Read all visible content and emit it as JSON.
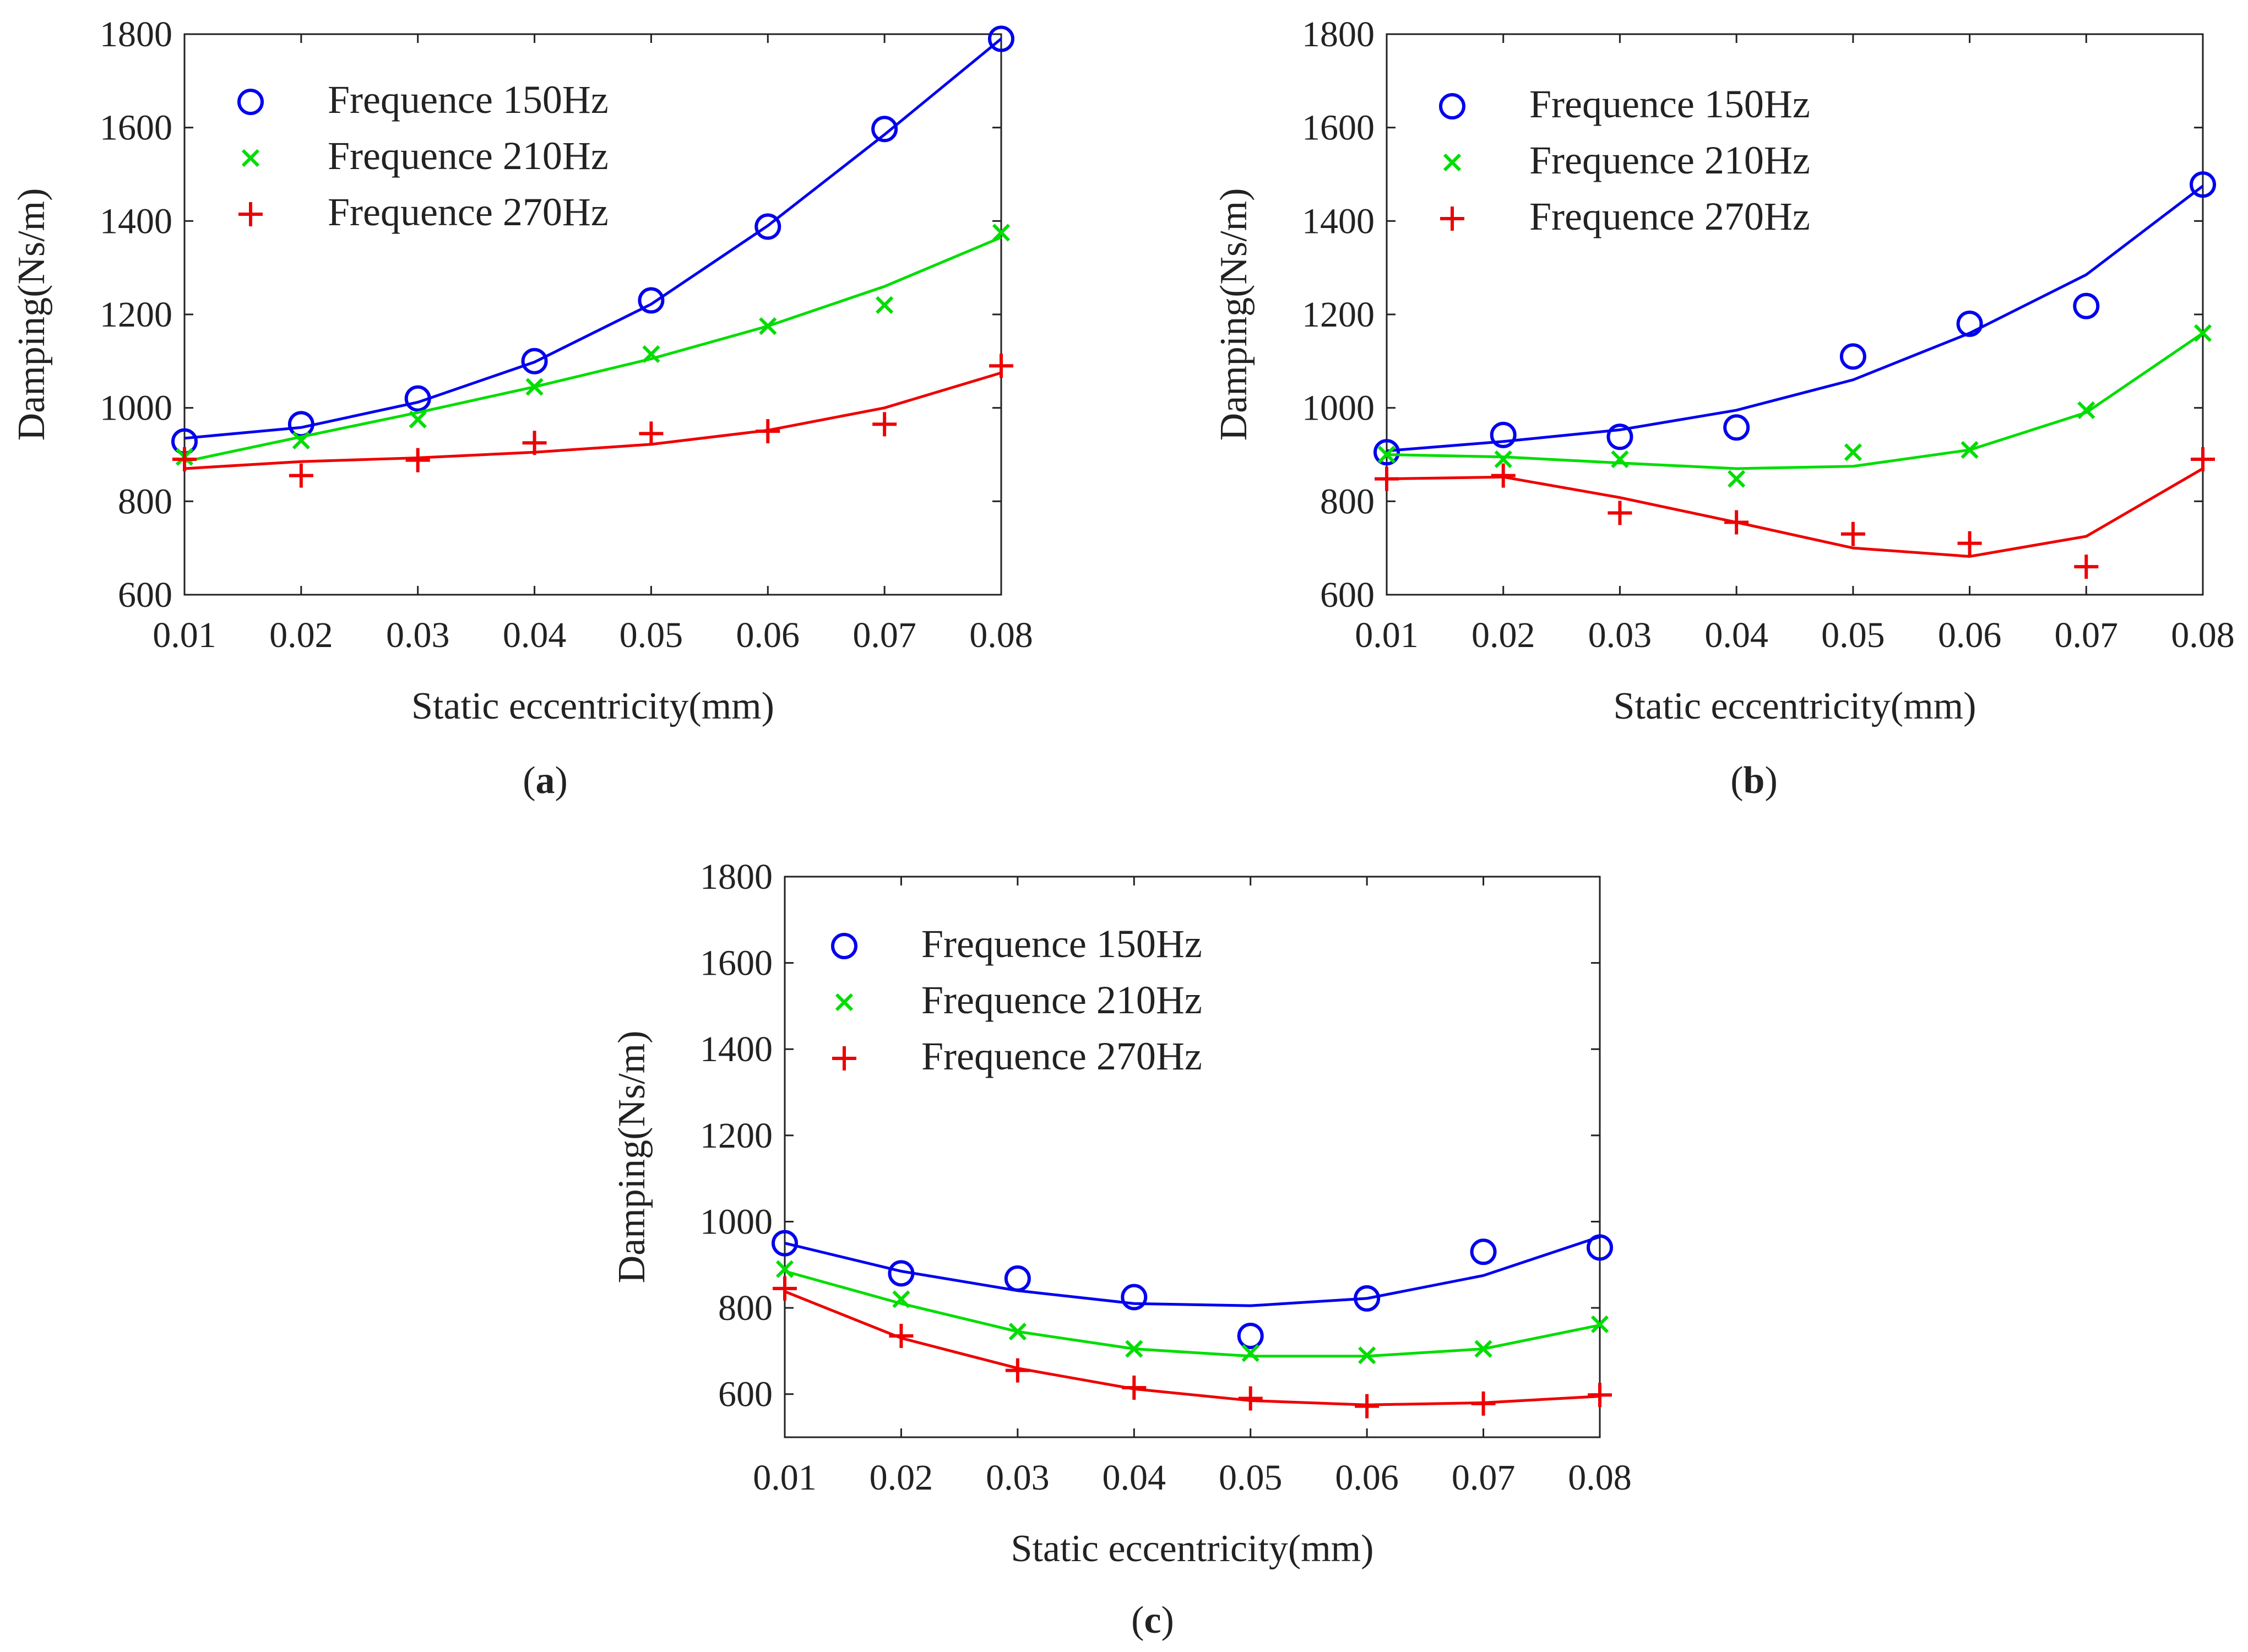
{
  "chart_data": [
    {
      "id": "a",
      "type": "scatter",
      "panel_label": "a",
      "xlabel": "Static eccentricity(mm)",
      "ylabel": "Damping(Ns/m)",
      "x": [
        0.01,
        0.02,
        0.03,
        0.04,
        0.05,
        0.06,
        0.07,
        0.08
      ],
      "x_tick_labels": [
        "0.01",
        "0.02",
        "0.03",
        "0.04",
        "0.05",
        "0.06",
        "0.07",
        "0.08"
      ],
      "xlim": [
        0.01,
        0.08
      ],
      "ylim": [
        600,
        1800
      ],
      "y_ticks": [
        600,
        800,
        1000,
        1200,
        1400,
        1600,
        1800
      ],
      "legend_position": "top-left",
      "series": [
        {
          "name": "Frequence 150Hz",
          "marker": "circle",
          "color": "#0000ee",
          "values": [
            928,
            965,
            1020,
            1100,
            1230,
            1388,
            1597,
            1790
          ],
          "fit": [
            935,
            958,
            1012,
            1098,
            1222,
            1390,
            1585,
            1790
          ]
        },
        {
          "name": "Frequence 210Hz",
          "marker": "x",
          "color": "#00dd00",
          "values": [
            895,
            930,
            975,
            1045,
            1115,
            1175,
            1220,
            1375
          ],
          "fit": [
            885,
            938,
            990,
            1045,
            1105,
            1175,
            1260,
            1365
          ]
        },
        {
          "name": "Frequence 270Hz",
          "marker": "plus",
          "color": "#ee0000",
          "values": [
            890,
            855,
            888,
            925,
            945,
            950,
            965,
            1090
          ],
          "fit": [
            870,
            885,
            893,
            905,
            922,
            952,
            1000,
            1075
          ]
        }
      ]
    },
    {
      "id": "b",
      "type": "scatter",
      "panel_label": "b",
      "xlabel": "Static eccentricity(mm)",
      "ylabel": "Damping(Ns/m)",
      "x": [
        0.01,
        0.02,
        0.03,
        0.04,
        0.05,
        0.06,
        0.07,
        0.08
      ],
      "x_tick_labels": [
        "0.01",
        "0.02",
        "0.03",
        "0.04",
        "0.05",
        "0.06",
        "0.07",
        "0.08"
      ],
      "xlim": [
        0.01,
        0.08
      ],
      "ylim": [
        600,
        1800
      ],
      "y_ticks": [
        600,
        800,
        1000,
        1200,
        1400,
        1600,
        1800
      ],
      "legend_position": "top-left",
      "series": [
        {
          "name": "Frequence 150Hz",
          "marker": "circle",
          "color": "#0000ee",
          "values": [
            905,
            942,
            938,
            958,
            1110,
            1180,
            1218,
            1478
          ],
          "fit": [
            908,
            928,
            953,
            995,
            1060,
            1160,
            1285,
            1475
          ]
        },
        {
          "name": "Frequence 210Hz",
          "marker": "x",
          "color": "#00dd00",
          "values": [
            900,
            890,
            890,
            848,
            905,
            910,
            995,
            1160
          ],
          "fit": [
            900,
            895,
            882,
            870,
            875,
            910,
            990,
            1160
          ]
        },
        {
          "name": "Frequence 270Hz",
          "marker": "plus",
          "color": "#ee0000",
          "values": [
            848,
            855,
            775,
            755,
            730,
            710,
            660,
            890
          ],
          "fit": [
            848,
            852,
            808,
            755,
            700,
            682,
            725,
            870
          ]
        }
      ]
    },
    {
      "id": "c",
      "type": "scatter",
      "panel_label": "c",
      "xlabel": "Static eccentricity(mm)",
      "ylabel": "Damping(Ns/m)",
      "x": [
        0.01,
        0.02,
        0.03,
        0.04,
        0.05,
        0.06,
        0.07,
        0.08
      ],
      "x_tick_labels": [
        "0.01",
        "0.02",
        "0.03",
        "0.04",
        "0.05",
        "0.06",
        "0.07",
        "0.08"
      ],
      "xlim": [
        0.01,
        0.08
      ],
      "ylim": [
        500,
        1800
      ],
      "y_ticks": [
        600,
        800,
        1000,
        1200,
        1400,
        1600,
        1800
      ],
      "legend_position": "top-left",
      "series": [
        {
          "name": "Frequence 150Hz",
          "marker": "circle",
          "color": "#0000ee",
          "values": [
            950,
            880,
            868,
            825,
            735,
            822,
            930,
            940
          ],
          "fit": [
            950,
            885,
            840,
            810,
            805,
            822,
            875,
            965
          ]
        },
        {
          "name": "Frequence 210Hz",
          "marker": "x",
          "color": "#00dd00",
          "values": [
            890,
            820,
            745,
            705,
            695,
            690,
            705,
            762
          ],
          "fit": [
            885,
            810,
            745,
            705,
            688,
            688,
            705,
            760
          ]
        },
        {
          "name": "Frequence 270Hz",
          "marker": "plus",
          "color": "#ee0000",
          "values": [
            845,
            735,
            655,
            615,
            590,
            572,
            578,
            598
          ],
          "fit": [
            838,
            730,
            660,
            612,
            585,
            575,
            580,
            595
          ]
        }
      ]
    }
  ]
}
